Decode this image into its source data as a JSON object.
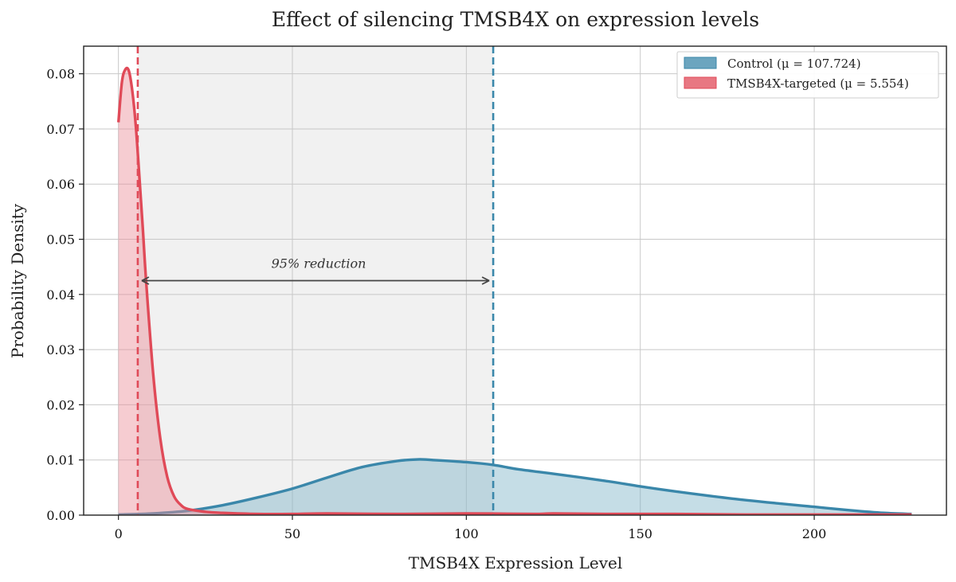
{
  "chart_data": {
    "type": "area",
    "title": "Effect of silencing TMSB4X on expression levels",
    "xlabel": "TMSB4X Expression Level",
    "ylabel": "Probability Density",
    "xlim": [
      -10,
      238
    ],
    "ylim": [
      0,
      0.085
    ],
    "xticks": [
      0,
      50,
      100,
      150,
      200
    ],
    "xtick_labels": [
      "0",
      "50",
      "100",
      "150",
      "200"
    ],
    "yticks": [
      0,
      0.01,
      0.02,
      0.03,
      0.04,
      0.05,
      0.06,
      0.07,
      0.08
    ],
    "ytick_labels": [
      "0.00",
      "0.01",
      "0.02",
      "0.03",
      "0.04",
      "0.05",
      "0.06",
      "0.07",
      "0.08"
    ],
    "grid": true,
    "legend_position": "top-right",
    "series": [
      {
        "name": "Control (μ = 107.724)",
        "mean": 107.724,
        "color": "#3a87aa",
        "fill": "#7fb3c8",
        "x": [
          0,
          10,
          20,
          30,
          40,
          50,
          60,
          70,
          80,
          86,
          90,
          100,
          107.7,
          115,
          125,
          140,
          150,
          160,
          175,
          190,
          200,
          210,
          220,
          228
        ],
        "y": [
          0.0001,
          0.0003,
          0.0008,
          0.0018,
          0.0032,
          0.0048,
          0.0068,
          0.0087,
          0.0098,
          0.0101,
          0.01,
          0.0096,
          0.0091,
          0.0083,
          0.0075,
          0.0062,
          0.0052,
          0.0043,
          0.0031,
          0.0021,
          0.0015,
          0.0009,
          0.0004,
          0.0002
        ]
      },
      {
        "name": "TMSB4X-targeted (μ = 5.554)",
        "mean": 5.554,
        "color": "#e04a58",
        "fill": "#ea8f98",
        "x": [
          0,
          1,
          2,
          3,
          4,
          5,
          6,
          7,
          8,
          10,
          12,
          14,
          16,
          18,
          20,
          25,
          30,
          40,
          50,
          60,
          80,
          100,
          120,
          125,
          140,
          160,
          180,
          200,
          228
        ],
        "y": [
          0.0712,
          0.0785,
          0.0808,
          0.0805,
          0.0768,
          0.0705,
          0.0615,
          0.052,
          0.042,
          0.0255,
          0.014,
          0.007,
          0.0034,
          0.0018,
          0.0011,
          0.0006,
          0.0004,
          0.0002,
          0.0002,
          0.0003,
          0.0002,
          0.0003,
          0.0002,
          0.0003,
          0.0002,
          0.0002,
          0.0001,
          0.0001,
          0.0001
        ]
      }
    ],
    "shaded_region": {
      "x_from": 5.554,
      "x_to": 107.724,
      "color": "#e6e6e6"
    },
    "annotation": {
      "text": "95% reduction",
      "arrow_from_x": 5.554,
      "arrow_to_x": 107.724,
      "arrow_y": 0.0425,
      "text_y": 0.0455
    }
  }
}
